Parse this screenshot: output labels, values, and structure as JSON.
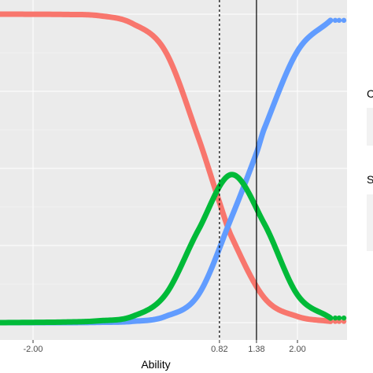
{
  "chart_data": {
    "type": "line",
    "xlabel": "Ability",
    "ylabel": "",
    "xlim": [
      -2.5,
      2.75
    ],
    "ylim": [
      0,
      1
    ],
    "grid": true,
    "legend_placement": "right (clipped)",
    "x_ticks": [
      {
        "value": -2.0,
        "label": "-2.00"
      },
      {
        "value": 0.82,
        "label": "0.82"
      },
      {
        "value": 1.38,
        "label": "1.38"
      },
      {
        "value": 2.0,
        "label": "2.00"
      }
    ],
    "reference_lines": [
      {
        "x": 0.82,
        "style": "dashed"
      },
      {
        "x": 1.38,
        "style": "solid"
      }
    ],
    "series": [
      {
        "color": "#F8766D",
        "x": [
          -2.5,
          -1.5,
          -1.0,
          -0.5,
          0.0,
          0.5,
          0.82,
          1.0,
          1.5,
          2.0,
          2.5
        ],
        "values": [
          1.0,
          0.999,
          0.995,
          0.97,
          0.88,
          0.6,
          0.39,
          0.28,
          0.08,
          0.02,
          0.004
        ]
      },
      {
        "color": "#619CFF",
        "x": [
          -2.5,
          -1.5,
          -1.0,
          -0.5,
          0.0,
          0.5,
          1.0,
          1.38,
          1.5,
          2.0,
          2.5
        ],
        "values": [
          0.0,
          0.0,
          0.001,
          0.004,
          0.02,
          0.09,
          0.34,
          0.55,
          0.63,
          0.88,
          0.98
        ]
      },
      {
        "color": "#00BA38",
        "x": [
          -2.5,
          -1.5,
          -1.0,
          -0.5,
          0.0,
          0.5,
          1.0,
          1.5,
          2.0,
          2.5
        ],
        "values": [
          0.0,
          0.002,
          0.006,
          0.02,
          0.09,
          0.3,
          0.48,
          0.32,
          0.09,
          0.015
        ]
      }
    ]
  },
  "legend": {
    "heading_1": "C",
    "heading_2": "S"
  },
  "colors": {
    "panel_bg": "#EBEBEB",
    "grid_major": "#FFFFFF"
  }
}
